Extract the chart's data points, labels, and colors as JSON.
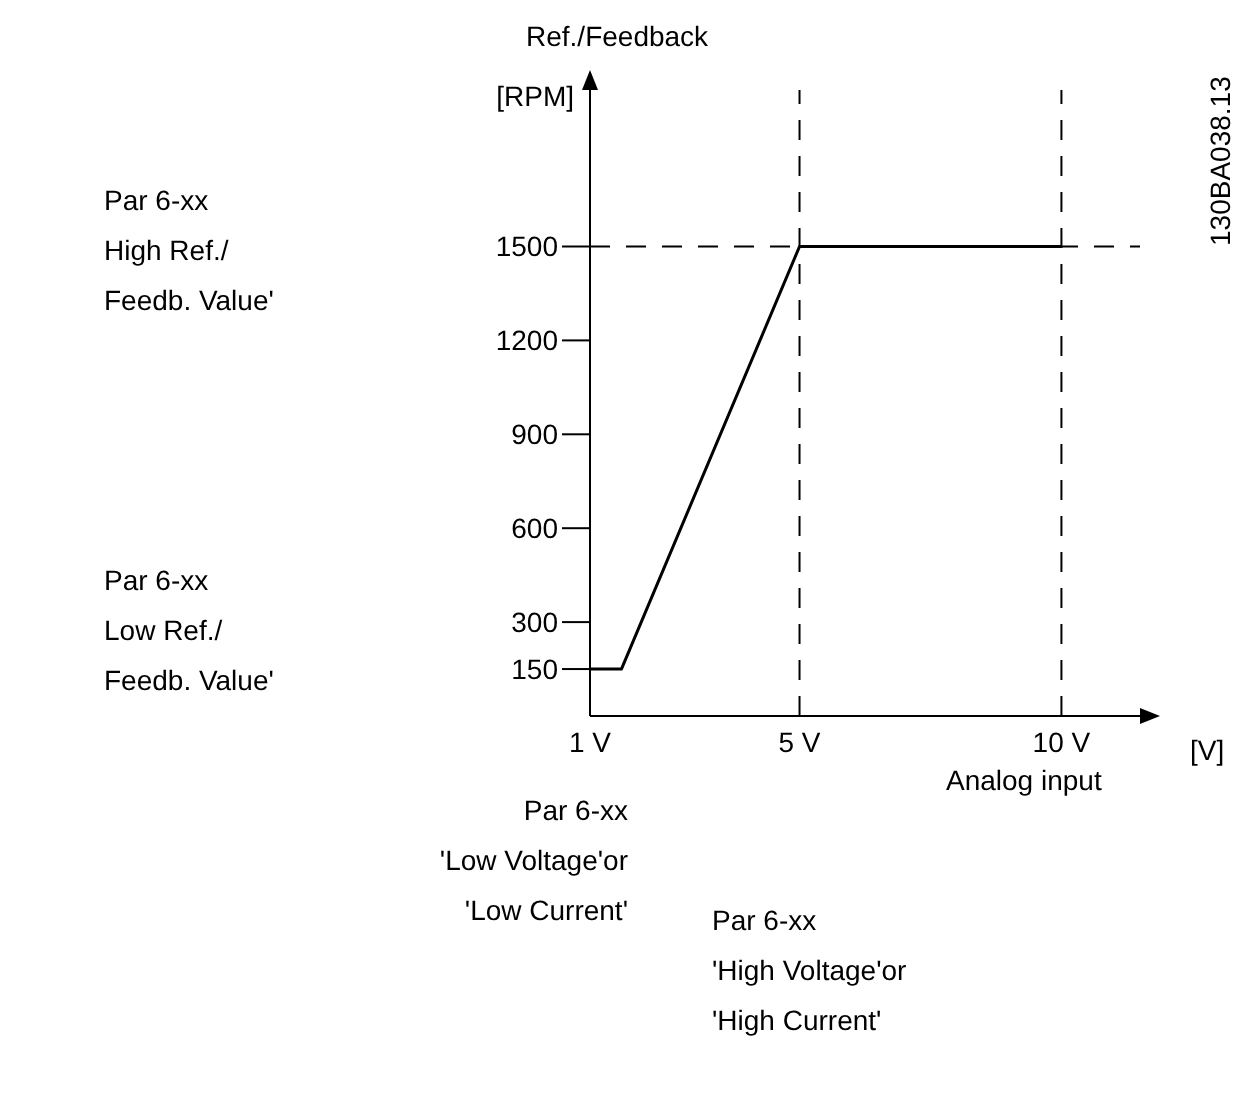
{
  "chart_data": {
    "type": "line",
    "ylabel": "Ref./Feedback\n[RPM]",
    "xlabel": "[V]",
    "x": [
      1,
      1.6,
      5,
      10
    ],
    "series": [
      {
        "color": "#000000",
        "values": [
          150,
          150,
          1500,
          1500
        ]
      }
    ],
    "xlim": [
      1,
      11.5
    ],
    "xticks": [
      {
        "value": 1,
        "label": "1 V"
      },
      {
        "value": 5,
        "label": "5 V"
      },
      {
        "value": 10,
        "label": "10 V"
      }
    ],
    "ylim": [
      0,
      2000
    ],
    "yticks": [
      150,
      300,
      600,
      900,
      1200,
      1500
    ],
    "grid": false,
    "legend": false,
    "marker": "none",
    "line_style": "solid",
    "ref_lines": [
      {
        "axis": "y",
        "value": 1500,
        "line_style": "dashed"
      },
      {
        "axis": "x",
        "value": 5,
        "line_style": "dashed"
      },
      {
        "axis": "x",
        "value": 10,
        "line_style": "dashed"
      }
    ],
    "annotations": [
      "Par 6-xx\nHigh Ref./\nFeedb. Value'",
      "Par 6-xx\nLow Ref./\nFeedb. Value'",
      "Par 6-xx\n'Low Voltage'or\n'Low Current'",
      "Par 6-xx\n'High Voltage'or\n'High Current'",
      "Analog input",
      "130BA038.13"
    ]
  }
}
